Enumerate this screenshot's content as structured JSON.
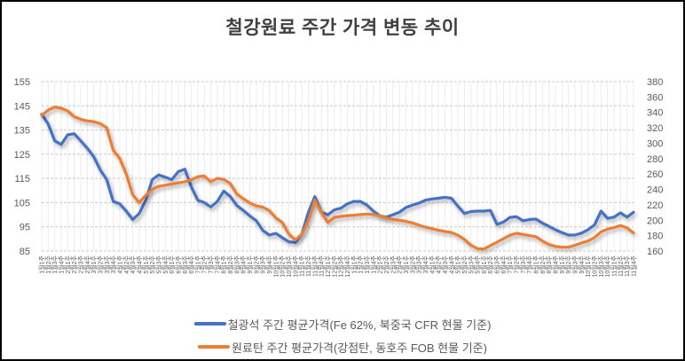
{
  "title": "철강원료 주간 가격 변동 추이",
  "colors": {
    "series_iron_ore": "#4472C4",
    "series_coking_coal": "#ED7D31",
    "grid_major": "#c9c9c9",
    "grid_minor": "#ececec",
    "axis_text": "#595959",
    "title_text": "#404040"
  },
  "chart_data": {
    "type": "line",
    "title": "철강원료 주간 가격 변동 추이",
    "legend_position": "bottom",
    "grid": true,
    "left_axis": {
      "min": 85,
      "max": 155,
      "step": 10,
      "ticks": [
        155,
        145,
        135,
        125,
        115,
        105,
        95,
        85
      ]
    },
    "right_axis": {
      "min": 160,
      "max": 380,
      "step": 20,
      "ticks": [
        380,
        360,
        340,
        320,
        300,
        280,
        260,
        240,
        220,
        200,
        180,
        160
      ]
    },
    "x_labels": [
      "1월1주",
      "1월2주",
      "1월3주",
      "1월4주",
      "2월1주",
      "2월2주",
      "2월3주",
      "2월4주",
      "3월1주",
      "3월2주",
      "3월3주",
      "3월4주",
      "4월1주",
      "4월2주",
      "4월3주",
      "4월4주",
      "5월1주",
      "5월2주",
      "5월3주",
      "5월4주",
      "6월1주",
      "6월2주",
      "6월3주",
      "6월4주",
      "7월1주",
      "7월2주",
      "7월3주",
      "7월4주",
      "8월1주",
      "8월2주",
      "8월3주",
      "8월4주",
      "9월1주",
      "9월2주",
      "9월3주",
      "9월4주",
      "10월1주",
      "10월2주",
      "10월3주",
      "10월4주",
      "11월1주",
      "11월2주",
      "11월3주",
      "11월4주",
      "12월1주",
      "12월2주",
      "12월3주",
      "12월4주",
      "1월1주",
      "1월2주",
      "1월3주",
      "1월4주",
      "2월1주",
      "2월2주",
      "2월3주",
      "2월4주",
      "3월1주",
      "3월2주",
      "3월3주",
      "3월4주",
      "4월1주",
      "4월2주",
      "4월3주",
      "4월4주",
      "5월1주",
      "5월2주",
      "5월3주",
      "5월4주",
      "6월1주",
      "6월2주",
      "6월3주",
      "6월4주",
      "7월1주",
      "7월2주",
      "7월3주",
      "7월4주",
      "8월1주",
      "8월2주",
      "8월3주",
      "8월4주",
      "9월1주",
      "9월2주",
      "9월3주",
      "9월4주",
      "10월1주",
      "10월2주",
      "10월3주",
      "10월4주",
      "11월1주",
      "11월2주",
      "11월3주",
      "11월4주"
    ],
    "series": [
      {
        "name": "철광석 주간 평균가격(Fe 62%, 북중국 CFR 현물 기준)",
        "axis": "left",
        "color": "#4472C4",
        "values": [
          141.5,
          137.5,
          130.5,
          129,
          133,
          133.5,
          130.5,
          127.5,
          124,
          118.5,
          114.5,
          105.5,
          104.5,
          101.5,
          98,
          100.5,
          106,
          114.5,
          116.5,
          115.5,
          114.5,
          117.8,
          118.8,
          111.5,
          106,
          105,
          103.2,
          105.5,
          109.8,
          107.5,
          103.8,
          101.8,
          99.5,
          97.5,
          93.5,
          91.6,
          92.3,
          90.5,
          88.8,
          88.5,
          92,
          101,
          107.5,
          101,
          100,
          102,
          102.7,
          104.5,
          105.5,
          105.5,
          104,
          101.5,
          99.5,
          99,
          100,
          101,
          103,
          104,
          104.8,
          106,
          106.5,
          106.8,
          107.2,
          106.8,
          103.5,
          100.5,
          101.3,
          101.5,
          101.5,
          101.8,
          96,
          97,
          98.9,
          99.2,
          97.5,
          98,
          98.2,
          96.5,
          95.2,
          93.8,
          92.6,
          91.6,
          91.6,
          92.4,
          93.8,
          95.8,
          101.5,
          98.5,
          99,
          100.8,
          99,
          101
        ]
      },
      {
        "name": "원료탄 주간 평균가격(강점탄, 동호주 FOB 현물 기준)",
        "axis": "right",
        "color": "#ED7D31",
        "values": [
          336,
          343,
          347,
          345.5,
          342,
          334.5,
          331,
          329,
          328,
          325.5,
          320,
          291,
          280,
          260,
          233,
          223,
          232.5,
          240,
          244,
          245.5,
          247,
          248.5,
          250,
          252.5,
          256.5,
          257.5,
          250,
          254.5,
          253,
          247.5,
          234,
          228,
          222.5,
          218.5,
          217,
          212.5,
          203,
          197,
          182,
          174.5,
          182,
          199,
          226,
          210,
          197,
          203.5,
          205,
          206,
          206.5,
          207.5,
          208,
          207.5,
          205.5,
          203,
          201,
          200,
          198.5,
          196.5,
          193.5,
          191,
          189,
          187,
          185.5,
          184,
          180.5,
          175,
          167.5,
          163,
          162.5,
          167,
          171.5,
          176,
          180.5,
          183,
          181.5,
          180,
          178.5,
          173,
          168.5,
          166,
          165,
          165,
          167.5,
          170.5,
          173,
          177.5,
          185,
          188.5,
          190.5,
          193,
          190,
          183.5
        ]
      }
    ]
  }
}
